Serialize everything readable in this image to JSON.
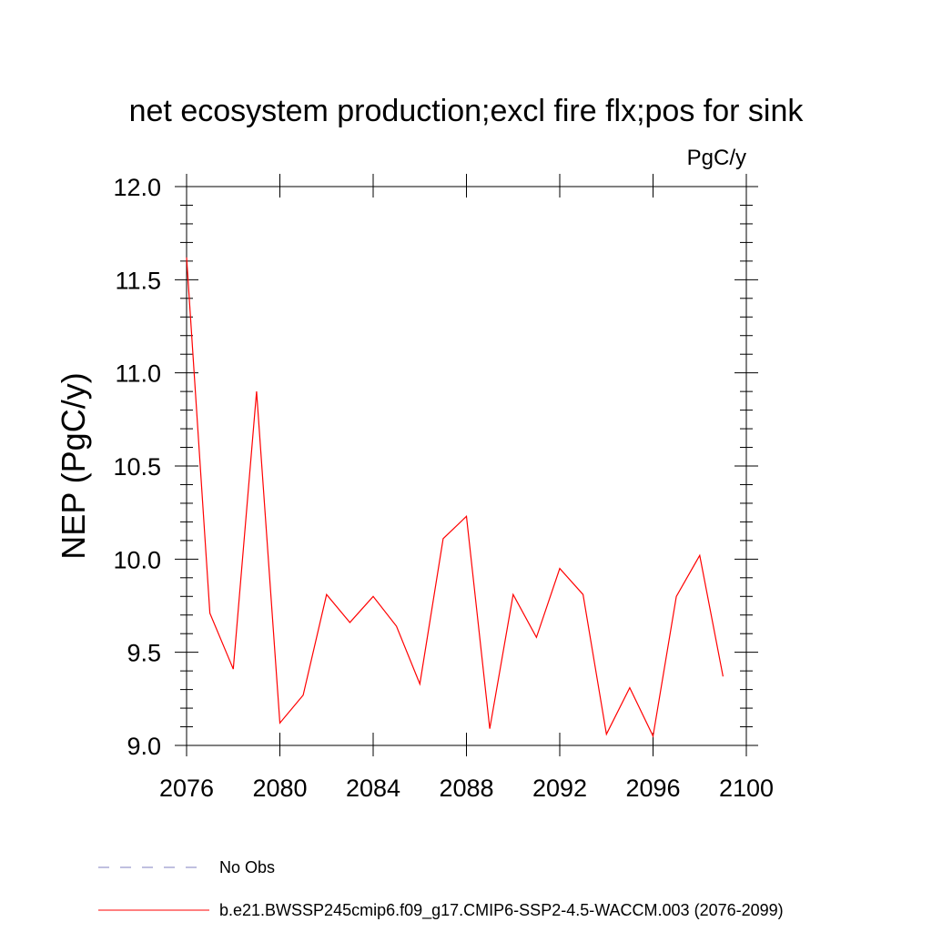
{
  "chart_data": {
    "type": "line",
    "title": "net ecosystem production;excl fire flx;pos for sink",
    "units": "PgC/y",
    "ylabel": "NEP  (PgC/y)",
    "xlabel": "",
    "xlim": [
      2076,
      2100
    ],
    "ylim": [
      9.0,
      12.0
    ],
    "x_ticks": [
      2076,
      2080,
      2084,
      2088,
      2092,
      2096,
      2100
    ],
    "x_tick_labels": [
      "2076",
      "2080",
      "2084",
      "2088",
      "2092",
      "2096",
      "2100"
    ],
    "y_ticks": [
      9.0,
      9.5,
      10.0,
      10.5,
      11.0,
      11.5,
      12.0
    ],
    "y_tick_labels": [
      "9.0",
      "9.5",
      "10.0",
      "10.5",
      "11.0",
      "11.5",
      "12.0"
    ],
    "series": [
      {
        "name": "b.e21.BWSSP245cmip6.f09_g17.CMIP6-SSP2-4.5-WACCM.003 (2076-2099)",
        "color": "#ff0000",
        "x": [
          2076,
          2077,
          2078,
          2079,
          2080,
          2081,
          2082,
          2083,
          2084,
          2085,
          2086,
          2087,
          2088,
          2089,
          2090,
          2091,
          2092,
          2093,
          2094,
          2095,
          2096,
          2097,
          2098,
          2099
        ],
        "values": [
          11.62,
          9.71,
          9.41,
          10.9,
          9.12,
          9.27,
          9.81,
          9.66,
          9.8,
          9.64,
          9.33,
          10.11,
          10.23,
          9.09,
          9.81,
          9.58,
          9.95,
          9.81,
          9.06,
          9.31,
          9.05,
          9.8,
          10.02,
          9.37
        ]
      }
    ],
    "legend": [
      {
        "label": "No Obs",
        "style": "dashed",
        "color": "#8080c0"
      },
      {
        "label": "b.e21.BWSSP245cmip6.f09_g17.CMIP6-SSP2-4.5-WACCM.003 (2076-2099)",
        "style": "solid",
        "color": "#ff0000"
      }
    ]
  }
}
